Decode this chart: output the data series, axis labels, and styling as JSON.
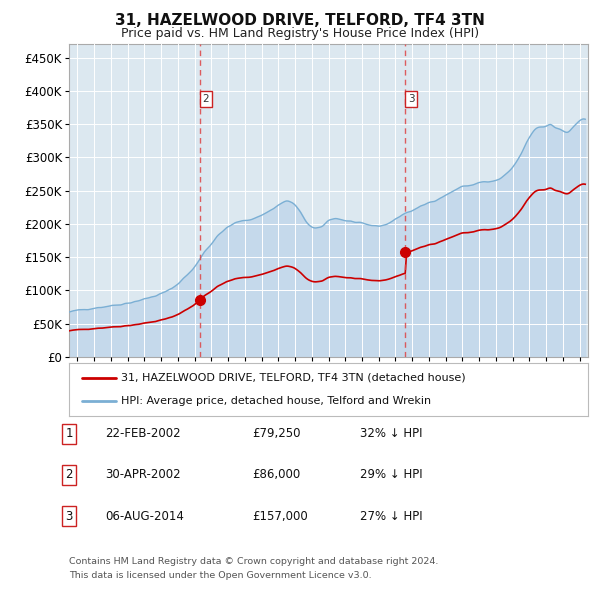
{
  "title": "31, HAZELWOOD DRIVE, TELFORD, TF4 3TN",
  "subtitle": "Price paid vs. HM Land Registry's House Price Index (HPI)",
  "legend_line1": "31, HAZELWOOD DRIVE, TELFORD, TF4 3TN (detached house)",
  "legend_line2": "HPI: Average price, detached house, Telford and Wrekin",
  "table": [
    {
      "num": "1",
      "date": "22-FEB-2002",
      "price": "£79,250",
      "pct": "32% ↓ HPI"
    },
    {
      "num": "2",
      "date": "30-APR-2002",
      "price": "£86,000",
      "pct": "29% ↓ HPI"
    },
    {
      "num": "3",
      "date": "06-AUG-2014",
      "price": "£157,000",
      "pct": "27% ↓ HPI"
    }
  ],
  "footnote1": "Contains HM Land Registry data © Crown copyright and database right 2024.",
  "footnote2": "This data is licensed under the Open Government Licence v3.0.",
  "vline_dates": [
    2002.33,
    2014.59
  ],
  "vline_labels": [
    "2",
    "3"
  ],
  "hpi_color": "#7bafd4",
  "hpi_fill_color": "#c5d9eb",
  "price_color": "#cc0000",
  "plot_bg": "#dce8f0",
  "grid_color": "#ffffff",
  "fig_bg": "#ffffff",
  "ylim": [
    0,
    470000
  ],
  "xlim": [
    1994.5,
    2025.5
  ],
  "yticks": [
    0,
    50000,
    100000,
    150000,
    200000,
    250000,
    300000,
    350000,
    400000,
    450000
  ],
  "ytick_labels": [
    "£0",
    "£50K",
    "£100K",
    "£150K",
    "£200K",
    "£250K",
    "£300K",
    "£350K",
    "£400K",
    "£450K"
  ],
  "xticks": [
    1995,
    1996,
    1997,
    1998,
    1999,
    2000,
    2001,
    2002,
    2003,
    2004,
    2005,
    2006,
    2007,
    2008,
    2009,
    2010,
    2011,
    2012,
    2013,
    2014,
    2015,
    2016,
    2017,
    2018,
    2019,
    2020,
    2021,
    2022,
    2023,
    2024,
    2025
  ],
  "marker_dates": [
    2002.33,
    2014.59
  ],
  "marker_prices": [
    86000,
    157000
  ],
  "t1": 2002.12,
  "p1": 79250,
  "t2": 2002.33,
  "p2": 86000,
  "t3": 2014.59,
  "p3": 157000
}
